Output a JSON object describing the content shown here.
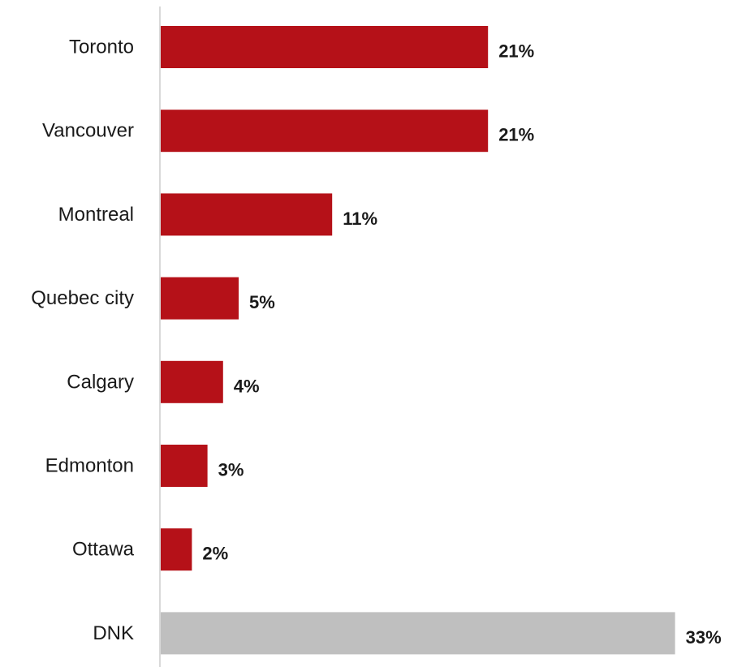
{
  "chart_data": {
    "type": "bar",
    "orientation": "horizontal",
    "title": "",
    "xlabel": "",
    "ylabel": "",
    "xlim": [
      0,
      33
    ],
    "grid": false,
    "legend": "none",
    "categories": [
      "Toronto",
      "Vancouver",
      "Montreal",
      "Quebec city",
      "Calgary",
      "Edmonton",
      "Ottawa",
      "DNK"
    ],
    "values": [
      21,
      21,
      11,
      5,
      4,
      3,
      2,
      33
    ],
    "value_labels": [
      "21%",
      "21%",
      "11%",
      "5%",
      "4%",
      "3%",
      "2%",
      "33%"
    ],
    "colors": {
      "primary": "#b51118",
      "dnk": "#bfbfbf",
      "axis": "#d9d9d9"
    },
    "bar_colors": [
      "#b51118",
      "#b51118",
      "#b51118",
      "#b51118",
      "#b51118",
      "#b51118",
      "#b51118",
      "#bfbfbf"
    ]
  }
}
